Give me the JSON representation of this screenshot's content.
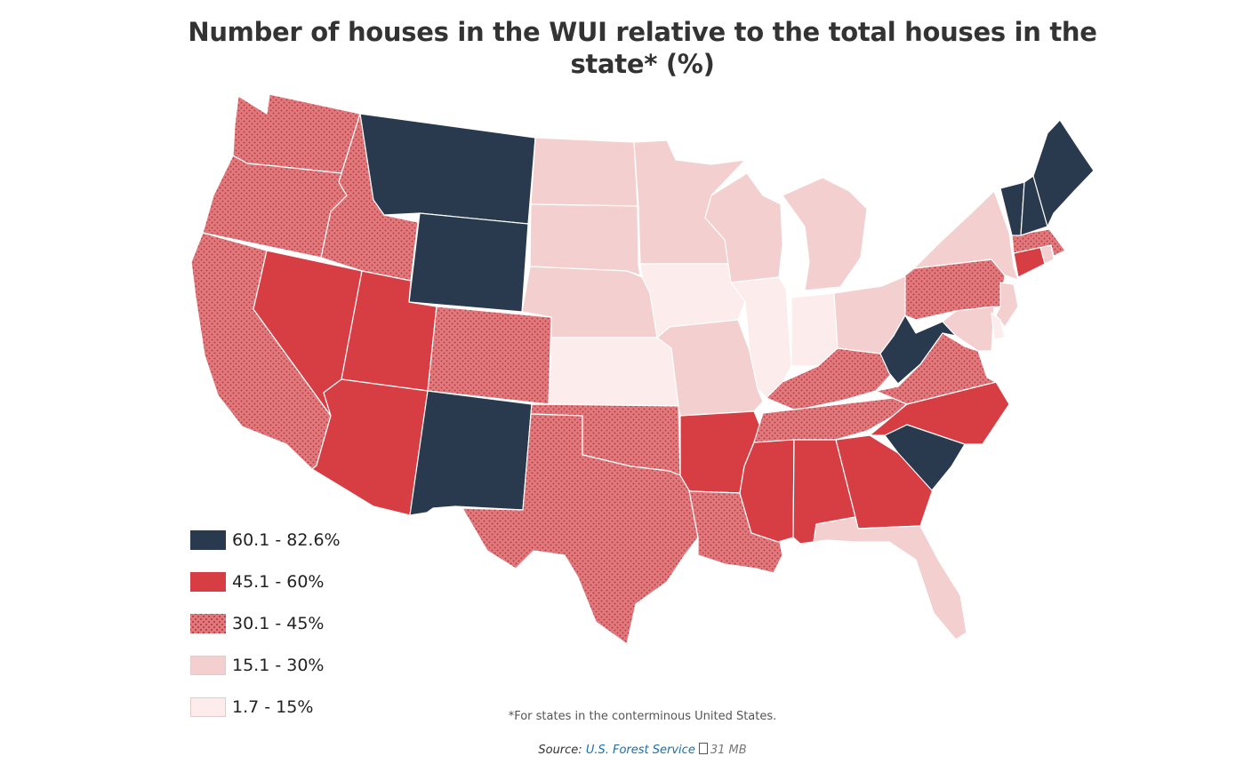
{
  "title": "Number of houses in the WUI relative to the total houses in the state* (%)",
  "colors": {
    "c5": "#2a3a4e",
    "c4": "#d63e44",
    "c3": "#e2787c",
    "c3_dot": "#a6393d",
    "c2": "#f3cfcf",
    "c1": "#fcecec",
    "border": "#ffffff"
  },
  "legend": [
    {
      "label": "60.1 - 82.6%",
      "class": "c5"
    },
    {
      "label": "45.1 - 60%",
      "class": "c4"
    },
    {
      "label": "30.1 - 45%",
      "class": "c3"
    },
    {
      "label": "15.1 - 30%",
      "class": "c2"
    },
    {
      "label": "1.7 - 15%",
      "class": "c1"
    }
  ],
  "states": {
    "WA": "c3",
    "OR": "c3",
    "CA": "c3",
    "NV": "c4",
    "ID": "c3",
    "MT": "c5",
    "WY": "c5",
    "UT": "c4",
    "AZ": "c4",
    "CO": "c3",
    "NM": "c5",
    "ND": "c2",
    "SD": "c2",
    "NE": "c2",
    "KS": "c1",
    "OK": "c3",
    "TX": "c3",
    "MN": "c2",
    "IA": "c1",
    "MO": "c2",
    "AR": "c4",
    "LA": "c3",
    "WI": "c2",
    "IL": "c1",
    "MI": "c2",
    "IN": "c1",
    "OH": "c2",
    "KY": "c3",
    "TN": "c3",
    "MS": "c4",
    "AL": "c4",
    "GA": "c4",
    "FL": "c2",
    "SC": "c5",
    "NC": "c4",
    "VA": "c3",
    "WV": "c5",
    "PA": "c3",
    "NY": "c2",
    "ME": "c5",
    "VT": "c5",
    "NH": "c5",
    "MA": "c3",
    "CT": "c4",
    "RI": "c2",
    "NJ": "c2",
    "DE": "c1",
    "MD": "c2"
  },
  "footnote": "*For states in the conterminous United States.",
  "source": {
    "prefix": "Source:",
    "link_text": "U.S. Forest Service",
    "file_size": "31 MB"
  }
}
